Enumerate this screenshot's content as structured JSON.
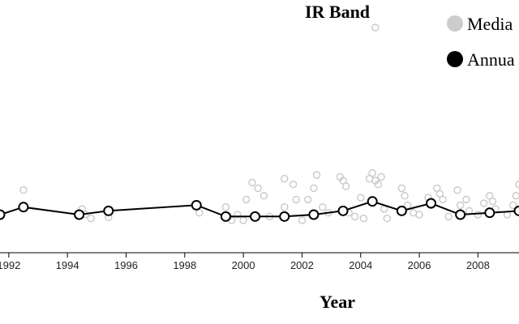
{
  "chart_data": {
    "type": "scatter",
    "title": "IR Band",
    "xlabel": "Year",
    "ylabel": "",
    "xlim": [
      1991.7,
      2009.4
    ],
    "ylim": [
      0,
      60
    ],
    "x_ticks": [
      1992,
      1994,
      1996,
      1998,
      2000,
      2002,
      2004,
      2006,
      2008
    ],
    "grid": false,
    "legend_position": "top-right",
    "series": [
      {
        "name": "Media",
        "style": "points",
        "color": "#cccccc",
        "points": [
          [
            1992.5,
            14
          ],
          [
            1994.5,
            9
          ],
          [
            1994.6,
            7.5
          ],
          [
            1994.8,
            6.5
          ],
          [
            1995.4,
            6.8
          ],
          [
            1998.4,
            10
          ],
          [
            1998.5,
            8
          ],
          [
            1999.4,
            9.5
          ],
          [
            1999.5,
            7
          ],
          [
            1999.6,
            6
          ],
          [
            1999.8,
            7.5
          ],
          [
            2000.0,
            6
          ],
          [
            2000.1,
            11.5
          ],
          [
            2000.3,
            16
          ],
          [
            2000.5,
            14.5
          ],
          [
            2000.7,
            12.5
          ],
          [
            2000.9,
            7
          ],
          [
            2001.4,
            17
          ],
          [
            2001.4,
            9.5
          ],
          [
            2001.7,
            15.5
          ],
          [
            2001.8,
            11.5
          ],
          [
            2002.0,
            6
          ],
          [
            2002.2,
            11.5
          ],
          [
            2002.4,
            14.5
          ],
          [
            2002.5,
            18
          ],
          [
            2002.7,
            9.5
          ],
          [
            2002.9,
            8
          ],
          [
            2003.3,
            17.5
          ],
          [
            2003.4,
            16.5
          ],
          [
            2003.5,
            15
          ],
          [
            2003.6,
            8
          ],
          [
            2003.8,
            7
          ],
          [
            2004.0,
            12
          ],
          [
            2004.1,
            6.5
          ],
          [
            2004.3,
            17
          ],
          [
            2004.4,
            18.5
          ],
          [
            2004.5,
            16.5
          ],
          [
            2004.6,
            15.5
          ],
          [
            2004.7,
            17.5
          ],
          [
            2004.8,
            9
          ],
          [
            2004.9,
            6.5
          ],
          [
            2005.4,
            14.5
          ],
          [
            2005.5,
            12.5
          ],
          [
            2005.6,
            10
          ],
          [
            2005.8,
            8
          ],
          [
            2006.0,
            7.5
          ],
          [
            2006.3,
            12
          ],
          [
            2006.4,
            10
          ],
          [
            2006.6,
            14.5
          ],
          [
            2006.7,
            13
          ],
          [
            2006.8,
            11.5
          ],
          [
            2007.0,
            7
          ],
          [
            2007.3,
            14
          ],
          [
            2007.4,
            10
          ],
          [
            2007.6,
            11.5
          ],
          [
            2007.7,
            8.5
          ],
          [
            2008.0,
            7.5
          ],
          [
            2008.2,
            10.5
          ],
          [
            2008.4,
            12.5
          ],
          [
            2008.5,
            11
          ],
          [
            2008.6,
            9
          ],
          [
            2009.0,
            7.5
          ],
          [
            2009.2,
            10
          ],
          [
            2009.4,
            15.5
          ],
          [
            2009.3,
            12.5
          ],
          [
            2004.5,
            57
          ]
        ]
      },
      {
        "name": "Annua",
        "style": "line+points",
        "color": "#000000",
        "points": [
          [
            1991.7,
            7.5
          ],
          [
            1992.5,
            9.5
          ],
          [
            1994.4,
            7.5
          ],
          [
            1995.4,
            8.5
          ],
          [
            1998.4,
            10
          ],
          [
            1999.4,
            7
          ],
          [
            2000.4,
            7
          ],
          [
            2001.4,
            7
          ],
          [
            2002.4,
            7.5
          ],
          [
            2003.4,
            8.5
          ],
          [
            2004.4,
            11
          ],
          [
            2005.4,
            8.5
          ],
          [
            2006.4,
            10.5
          ],
          [
            2007.4,
            7.5
          ],
          [
            2008.4,
            8
          ],
          [
            2009.4,
            8.5
          ]
        ]
      }
    ]
  }
}
